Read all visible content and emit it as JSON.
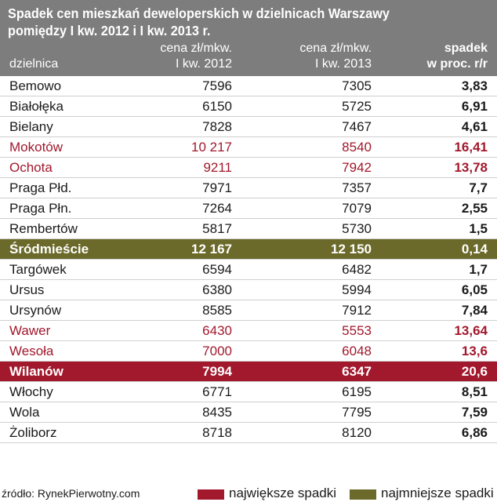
{
  "chart_data": {
    "type": "table",
    "title": "Spadek cen mieszkań deweloperskich w dzielnicach Warszawy pomiędzy I kw. 2012 i I kw. 2013 r.",
    "columns": [
      {
        "line1": "",
        "line2": "dzielnica"
      },
      {
        "line1": "cena zł/mkw.",
        "line2": "I kw. 2012"
      },
      {
        "line1": "cena zł/mkw.",
        "line2": "I kw. 2013"
      },
      {
        "line1": "spadek",
        "line2": "w proc. r/r"
      }
    ],
    "rows": [
      {
        "district": "Bemowo",
        "price_2012": "7596",
        "price_2013": "7305",
        "drop": "3,83",
        "group": "none"
      },
      {
        "district": "Białołęka",
        "price_2012": "6150",
        "price_2013": "5725",
        "drop": "6,91",
        "group": "none"
      },
      {
        "district": "Bielany",
        "price_2012": "7828",
        "price_2013": "7467",
        "drop": "4,61",
        "group": "none"
      },
      {
        "district": "Mokotów",
        "price_2012": "10 217",
        "price_2013": "8540",
        "drop": "16,41",
        "group": "big"
      },
      {
        "district": "Ochota",
        "price_2012": "9211",
        "price_2013": "7942",
        "drop": "13,78",
        "group": "big"
      },
      {
        "district": "Praga Płd.",
        "price_2012": "7971",
        "price_2013": "7357",
        "drop": "7,7",
        "group": "none"
      },
      {
        "district": "Praga Płn.",
        "price_2012": "7264",
        "price_2013": "7079",
        "drop": "2,55",
        "group": "none"
      },
      {
        "district": "Rembertów",
        "price_2012": "5817",
        "price_2013": "5730",
        "drop": "1,5",
        "group": "none"
      },
      {
        "district": "Śródmieście",
        "price_2012": "12 167",
        "price_2013": "12 150",
        "drop": "0,14",
        "group": "small"
      },
      {
        "district": "Targówek",
        "price_2012": "6594",
        "price_2013": "6482",
        "drop": "1,7",
        "group": "none"
      },
      {
        "district": "Ursus",
        "price_2012": "6380",
        "price_2013": "5994",
        "drop": "6,05",
        "group": "none"
      },
      {
        "district": "Ursynów",
        "price_2012": "8585",
        "price_2013": "7912",
        "drop": "7,84",
        "group": "none"
      },
      {
        "district": "Wawer",
        "price_2012": "6430",
        "price_2013": "5553",
        "drop": "13,64",
        "group": "big"
      },
      {
        "district": "Wesoła",
        "price_2012": "7000",
        "price_2013": "6048",
        "drop": "13,6",
        "group": "big"
      },
      {
        "district": "Wilanów",
        "price_2012": "7994",
        "price_2013": "6347",
        "drop": "20,6",
        "group": "bigfill"
      },
      {
        "district": "Włochy",
        "price_2012": "6771",
        "price_2013": "6195",
        "drop": "8,51",
        "group": "none"
      },
      {
        "district": "Wola",
        "price_2012": "8435",
        "price_2013": "7795",
        "drop": "7,59",
        "group": "none"
      },
      {
        "district": "Żoliborz",
        "price_2012": "8718",
        "price_2013": "8120",
        "drop": "6,86",
        "group": "none"
      }
    ],
    "source": "źródło: RynekPierwotny.com",
    "legend": [
      {
        "label": "największe spadki",
        "color": "#a2182c"
      },
      {
        "label": "najmniejsze spadki",
        "color": "#6b6a2a"
      }
    ],
    "legend_placement": "bottom-right"
  }
}
